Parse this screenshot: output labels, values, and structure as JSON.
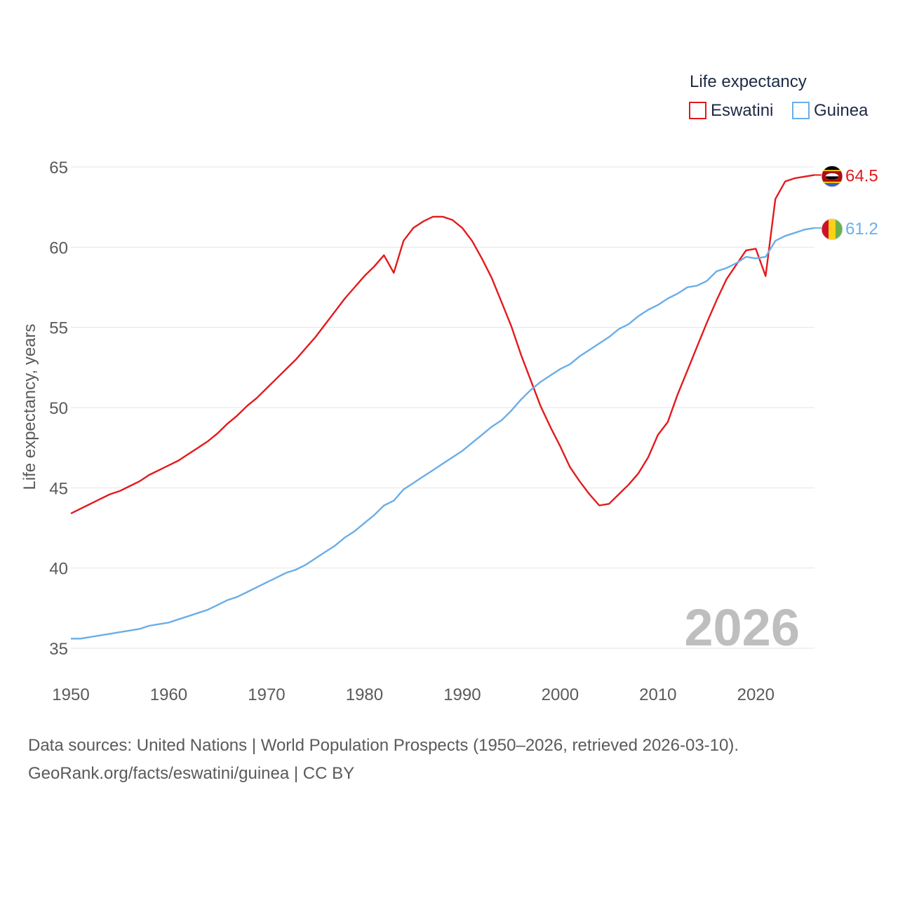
{
  "chart_data": {
    "type": "line",
    "legend": {
      "title": "Life expectancy",
      "placement": "top-right"
    },
    "ylabel": "Life expectancy, years",
    "xlabel": "",
    "xlim": [
      1950,
      2026
    ],
    "ylim": [
      35,
      65
    ],
    "xticks": [
      "1950",
      "1960",
      "1970",
      "1980",
      "1990",
      "2000",
      "2010",
      "2020"
    ],
    "yticks": [
      "35",
      "40",
      "45",
      "50",
      "55",
      "60",
      "65"
    ],
    "year_label": "2026",
    "x": [
      1950,
      1951,
      1952,
      1953,
      1954,
      1955,
      1956,
      1957,
      1958,
      1959,
      1960,
      1961,
      1962,
      1963,
      1964,
      1965,
      1966,
      1967,
      1968,
      1969,
      1970,
      1971,
      1972,
      1973,
      1974,
      1975,
      1976,
      1977,
      1978,
      1979,
      1980,
      1981,
      1982,
      1983,
      1984,
      1985,
      1986,
      1987,
      1988,
      1989,
      1990,
      1991,
      1992,
      1993,
      1994,
      1995,
      1996,
      1997,
      1998,
      1999,
      2000,
      2001,
      2002,
      2003,
      2004,
      2005,
      2006,
      2007,
      2008,
      2009,
      2010,
      2011,
      2012,
      2013,
      2014,
      2015,
      2016,
      2017,
      2018,
      2019,
      2020,
      2021,
      2022,
      2023,
      2024,
      2025,
      2026
    ],
    "series": [
      {
        "name": "Eswatini",
        "color": "#e31a1c",
        "end_label": "64.5",
        "flag": "eswatini-flag",
        "values": [
          43.4,
          43.7,
          44.0,
          44.3,
          44.6,
          44.8,
          45.1,
          45.4,
          45.8,
          46.1,
          46.4,
          46.7,
          47.1,
          47.5,
          47.9,
          48.4,
          49.0,
          49.5,
          50.1,
          50.6,
          51.2,
          51.8,
          52.4,
          53.0,
          53.7,
          54.4,
          55.2,
          56.0,
          56.8,
          57.5,
          58.2,
          58.8,
          59.5,
          58.4,
          60.4,
          61.2,
          61.6,
          61.9,
          61.9,
          61.7,
          61.2,
          60.4,
          59.3,
          58.1,
          56.6,
          55.1,
          53.3,
          51.7,
          50.1,
          48.8,
          47.6,
          46.3,
          45.4,
          44.6,
          43.9,
          44.0,
          44.6,
          45.2,
          45.9,
          46.9,
          48.3,
          49.1,
          50.8,
          52.3,
          53.8,
          55.3,
          56.7,
          58.0,
          58.9,
          59.8,
          59.9,
          58.2,
          63.0,
          64.1,
          64.3,
          64.4,
          64.5
        ]
      },
      {
        "name": "Guinea",
        "color": "#6aaee8",
        "end_label": "61.2",
        "flag": "guinea-flag",
        "values": [
          35.6,
          35.6,
          35.7,
          35.8,
          35.9,
          36.0,
          36.1,
          36.2,
          36.4,
          36.5,
          36.6,
          36.8,
          37.0,
          37.2,
          37.4,
          37.7,
          38.0,
          38.2,
          38.5,
          38.8,
          39.1,
          39.4,
          39.7,
          39.9,
          40.2,
          40.6,
          41.0,
          41.4,
          41.9,
          42.3,
          42.8,
          43.3,
          43.9,
          44.2,
          44.9,
          45.3,
          45.7,
          46.1,
          46.5,
          46.9,
          47.3,
          47.8,
          48.3,
          48.8,
          49.2,
          49.8,
          50.5,
          51.1,
          51.6,
          52.0,
          52.4,
          52.7,
          53.2,
          53.6,
          54.0,
          54.4,
          54.9,
          55.2,
          55.7,
          56.1,
          56.4,
          56.8,
          57.1,
          57.5,
          57.6,
          57.9,
          58.5,
          58.7,
          59.0,
          59.4,
          59.3,
          59.4,
          60.4,
          60.7,
          60.9,
          61.1,
          61.2
        ]
      }
    ]
  },
  "footer": {
    "line1": "Data sources: United Nations | World Population Prospects (1950–2026, retrieved 2026-03-10).",
    "line2": "GeoRank.org/facts/eswatini/guinea | CC BY"
  }
}
